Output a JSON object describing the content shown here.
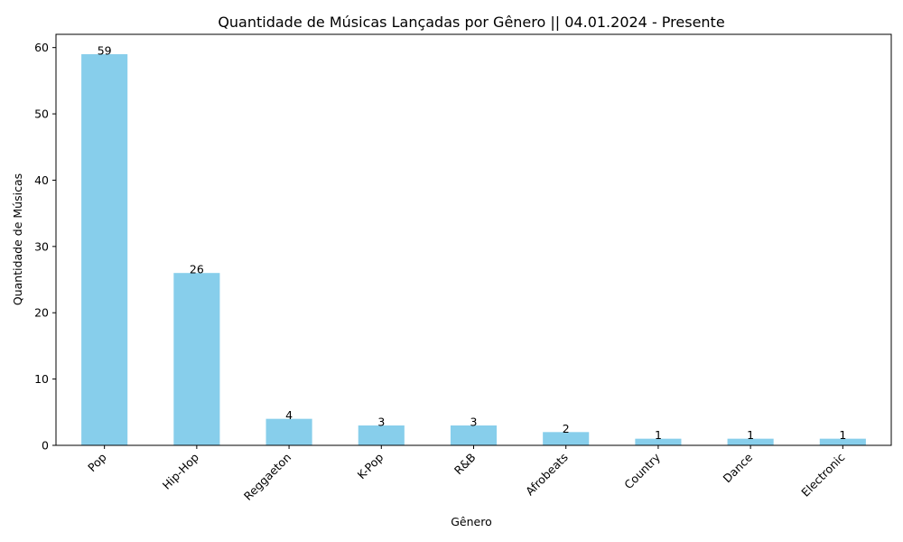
{
  "chart_data": {
    "type": "bar",
    "title": "Quantidade de Músicas Lançadas por Gênero || 04.01.2024 - Presente",
    "xlabel": "Gênero",
    "ylabel": "Quantidade de Músicas",
    "categories": [
      "Pop",
      "Hip-Hop",
      "Reggaeton",
      "K-Pop",
      "R&B",
      "Afrobeats",
      "Country",
      "Dance",
      "Electronic"
    ],
    "values": [
      59,
      26,
      4,
      3,
      3,
      2,
      1,
      1,
      1
    ],
    "ylim": [
      0,
      62
    ],
    "yticks": [
      0,
      10,
      20,
      30,
      40,
      50,
      60
    ],
    "bar_color": "#87ceeb",
    "grid": false,
    "legend": "none"
  }
}
